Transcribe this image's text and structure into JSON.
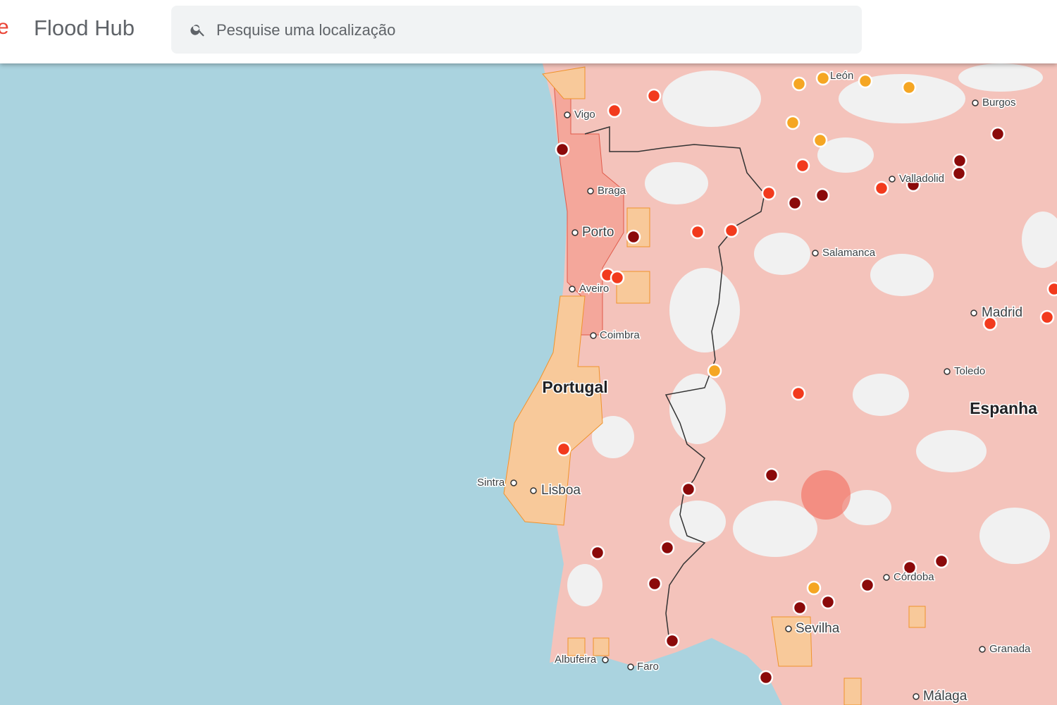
{
  "header": {
    "logo_fragment": "e",
    "title": "Flood Hub",
    "search_placeholder": "Pesquise uma localização"
  },
  "map": {
    "countries": [
      "Portugal",
      "Espanha"
    ],
    "places": [
      "León",
      "Burgos",
      "Vigo",
      "Valladolid",
      "Braga",
      "Porto",
      "Salamanca",
      "Aveiro",
      "Madrid",
      "Coimbra",
      "Toledo",
      "Sintra",
      "Lisboa",
      "Córdoba",
      "Sevilha",
      "Granada",
      "Albufeira",
      "Faro",
      "Málaga"
    ]
  }
}
